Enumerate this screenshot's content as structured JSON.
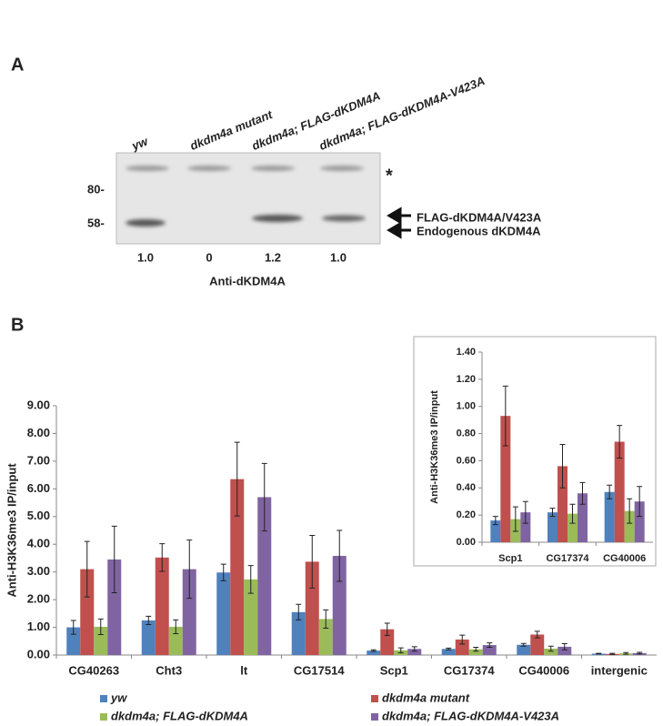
{
  "panel_a": {
    "label": "A",
    "lanes": [
      "yw",
      "dkdm4a mutant",
      "dkdm4a; FLAG-dKDM4A",
      "dkdm4a; FLAG-dKDM4A-V423A"
    ],
    "markers": [
      "80-",
      "58-"
    ],
    "asterisk": "*",
    "arrow_labels": [
      "FLAG-dKDM4A/V423A",
      "Endogenous dKDM4A"
    ],
    "quantification": [
      "1.0",
      "0",
      "1.2",
      "1.0"
    ],
    "antibody": "Anti-dKDM4A"
  },
  "panel_b": {
    "label": "B"
  },
  "chart_data": [
    {
      "type": "bar",
      "y_label": "Anti-H3K36me3 IP/input",
      "categories": [
        "CG40263",
        "Cht3",
        "lt",
        "CG17514",
        "Scp1",
        "CG17374",
        "CG40006",
        "intergenic"
      ],
      "series": [
        {
          "name": "yw",
          "color": "#4f81bd",
          "values": [
            1.0,
            1.25,
            2.98,
            1.55,
            0.16,
            0.22,
            0.37,
            0.05
          ],
          "errors": [
            0.25,
            0.15,
            0.3,
            0.28,
            0.03,
            0.03,
            0.05,
            0.01
          ]
        },
        {
          "name": "dkdm4a mutant",
          "color": "#c0504d",
          "values": [
            3.1,
            3.52,
            6.35,
            3.37,
            0.93,
            0.56,
            0.74,
            0.04
          ],
          "errors": [
            1.0,
            0.5,
            1.33,
            0.95,
            0.22,
            0.16,
            0.12,
            0.02
          ]
        },
        {
          "name": "dkdm4a; FLAG-dKDM4A",
          "color": "#9bbb59",
          "values": [
            1.02,
            1.02,
            2.73,
            1.3,
            0.17,
            0.21,
            0.23,
            0.06
          ],
          "errors": [
            0.28,
            0.25,
            0.5,
            0.33,
            0.09,
            0.07,
            0.09,
            0.03
          ]
        },
        {
          "name": "dkdm4a; FLAG-dKDM4A-V423A",
          "color": "#8064a2",
          "values": [
            3.45,
            3.1,
            5.7,
            3.58,
            0.22,
            0.36,
            0.3,
            0.07
          ],
          "errors": [
            1.2,
            1.05,
            1.22,
            0.92,
            0.08,
            0.08,
            0.11,
            0.03
          ]
        }
      ],
      "ylim": [
        0,
        9
      ],
      "yticks": [
        {
          "value": 0,
          "label": "0.00"
        },
        {
          "value": 1,
          "label": "1.00"
        },
        {
          "value": 2,
          "label": "2.00"
        },
        {
          "value": 3,
          "label": "3.00"
        },
        {
          "value": 4,
          "label": "4.00"
        },
        {
          "value": 5,
          "label": "5.00"
        },
        {
          "value": 6,
          "label": "6.00"
        },
        {
          "value": 7,
          "label": "7.00"
        },
        {
          "value": 8,
          "label": "8.00"
        },
        {
          "value": 9,
          "label": "9.00"
        }
      ],
      "legend": "bottom"
    },
    {
      "type": "bar",
      "y_label": "Anti-H3K36me3 IP/input",
      "categories": [
        "Scp1",
        "CG17374",
        "CG40006"
      ],
      "series": [
        {
          "color": "#4f81bd",
          "values": [
            0.16,
            0.22,
            0.37
          ],
          "errors": [
            0.03,
            0.03,
            0.05
          ]
        },
        {
          "color": "#c0504d",
          "values": [
            0.93,
            0.56,
            0.74
          ],
          "errors": [
            0.22,
            0.16,
            0.12
          ]
        },
        {
          "color": "#9bbb59",
          "values": [
            0.17,
            0.21,
            0.23
          ],
          "errors": [
            0.09,
            0.07,
            0.09
          ]
        },
        {
          "color": "#8064a2",
          "values": [
            0.22,
            0.36,
            0.3
          ],
          "errors": [
            0.08,
            0.08,
            0.11
          ]
        }
      ],
      "ylim": [
        0,
        1.4
      ],
      "yticks": [
        {
          "value": 0,
          "label": "0.00"
        },
        {
          "value": 0.2,
          "label": "0.20"
        },
        {
          "value": 0.4,
          "label": "0.40"
        },
        {
          "value": 0.6,
          "label": "0.60"
        },
        {
          "value": 0.8,
          "label": "0.80"
        },
        {
          "value": 1,
          "label": "1.00"
        },
        {
          "value": 1.2,
          "label": "1.20"
        },
        {
          "value": 1.4,
          "label": "1.40"
        }
      ]
    }
  ]
}
